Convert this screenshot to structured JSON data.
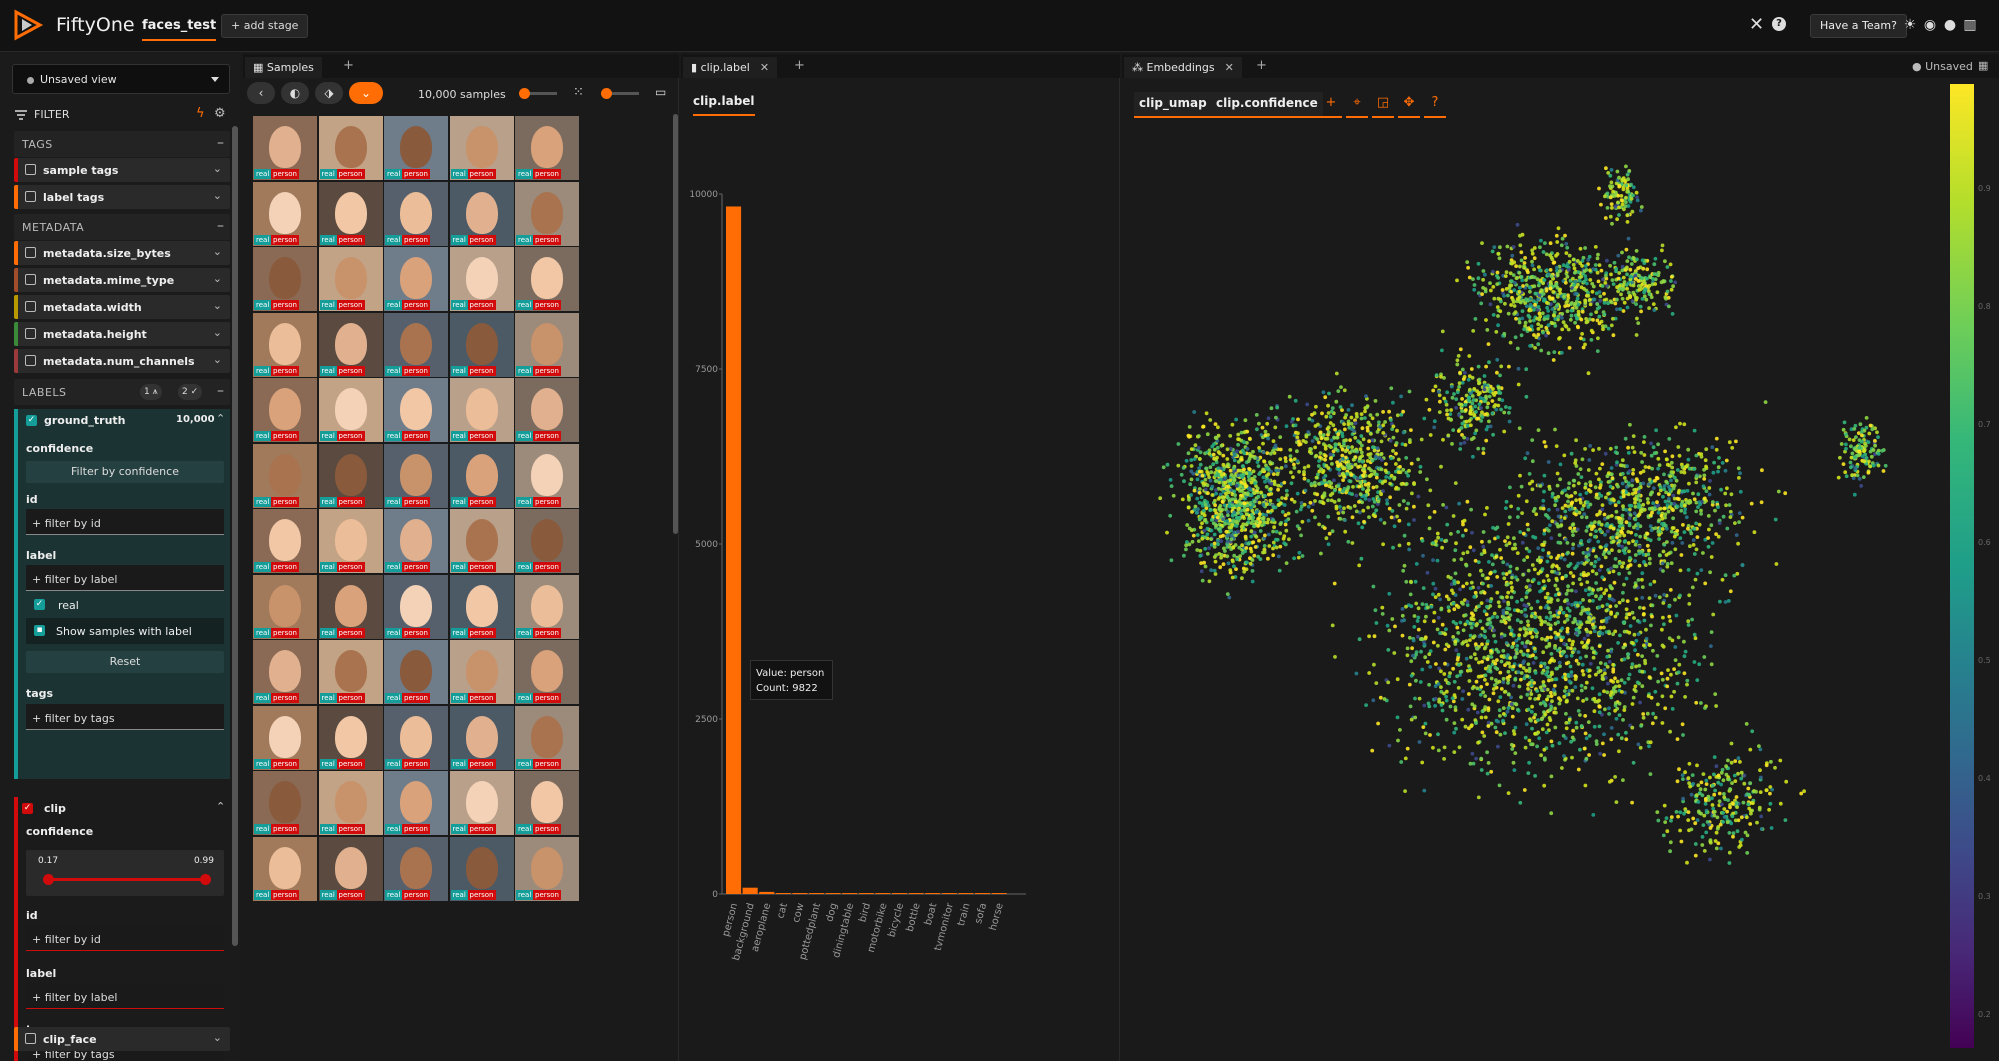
{
  "header": {
    "app_name": "FiftyOne",
    "dataset_name": "faces_test",
    "add_stage": "+ add stage",
    "team_button": "Have a Team?",
    "icons": [
      "close-icon",
      "help-icon",
      "theme-icon",
      "discord-icon",
      "github-icon",
      "docs-icon"
    ]
  },
  "sidebar": {
    "view_selector": "Unsaved view",
    "filter_label": "FILTER",
    "tags_section": "TAGS",
    "tag_fields": [
      {
        "name": "sample tags",
        "color": "#d10b0b"
      },
      {
        "name": "label tags",
        "color": "#ff6d04"
      }
    ],
    "metadata_section": "METADATA",
    "metadata_fields": [
      {
        "name": "metadata.size_bytes",
        "color": "#ff6d04"
      },
      {
        "name": "metadata.mime_type",
        "color": "#a14d2a"
      },
      {
        "name": "metadata.width",
        "color": "#b89a00"
      },
      {
        "name": "metadata.height",
        "color": "#3a8a3a"
      },
      {
        "name": "metadata.num_channels",
        "color": "#9b3a3a"
      }
    ],
    "labels_section": "LABELS",
    "labels_badge_1": "1",
    "labels_badge_2": "2",
    "ground_truth": {
      "name": "ground_truth",
      "count": "10,000",
      "color": "#159e99",
      "confidence_label": "confidence",
      "filter_confidence_btn": "Filter by confidence",
      "id_label": "id",
      "id_placeholder": "+ filter by id",
      "label_label": "label",
      "label_placeholder": "+ filter by label",
      "selected_value": "real",
      "show_samples": "Show samples with label",
      "reset": "Reset",
      "tags_label": "tags",
      "tags_placeholder": "+ filter by tags"
    },
    "clip": {
      "name": "clip",
      "color": "#d10b0b",
      "confidence_label": "confidence",
      "range_min": "0.17",
      "range_max": "0.99",
      "id_label": "id",
      "id_placeholder": "+ filter by id",
      "label_label": "label",
      "label_placeholder": "+ filter by label",
      "tags_label": "tags",
      "tags_placeholder": "+ filter by tags"
    },
    "clip_face": {
      "name": "clip_face",
      "color": "#ff6d04"
    }
  },
  "samples_panel": {
    "tab_label": "Samples",
    "sample_count": "10,000 samples",
    "tile_tags": {
      "gt": "real",
      "pred": "person"
    }
  },
  "histogram_panel": {
    "tab_label": "clip.label",
    "field_tab": "clip.label",
    "tooltip_value": "Value: person",
    "tooltip_count": "Count: 9822"
  },
  "chart_data": {
    "type": "bar",
    "title": "",
    "xlabel": "",
    "ylabel": "",
    "categories": [
      "person",
      "background",
      "aeroplane",
      "cat",
      "cow",
      "pottedplant",
      "dog",
      "diningtable",
      "bird",
      "motorbike",
      "bicycle",
      "bottle",
      "boat",
      "tvmonitor",
      "train",
      "sofa",
      "horse"
    ],
    "values": [
      9822,
      90,
      30,
      12,
      8,
      6,
      5,
      4,
      3,
      3,
      2,
      2,
      2,
      1,
      1,
      1,
      1
    ],
    "ylim": [
      0,
      10000
    ],
    "yticks": [
      "0",
      "2500",
      "5000",
      "7500",
      "10000"
    ],
    "color": "#ff6d04",
    "grid": false
  },
  "embeddings_panel": {
    "tab_label": "Embeddings",
    "brain_key": "clip_umap",
    "color_by": "clip.confidence",
    "unsaved_label": "Unsaved",
    "colorbar_ticks": [
      "0.9",
      "0.8",
      "0.7",
      "0.6",
      "0.5",
      "0.4",
      "0.3",
      "0.2"
    ],
    "icons": [
      "plus-icon",
      "fit-icon",
      "select-icon",
      "pan-icon",
      "help-icon"
    ]
  }
}
